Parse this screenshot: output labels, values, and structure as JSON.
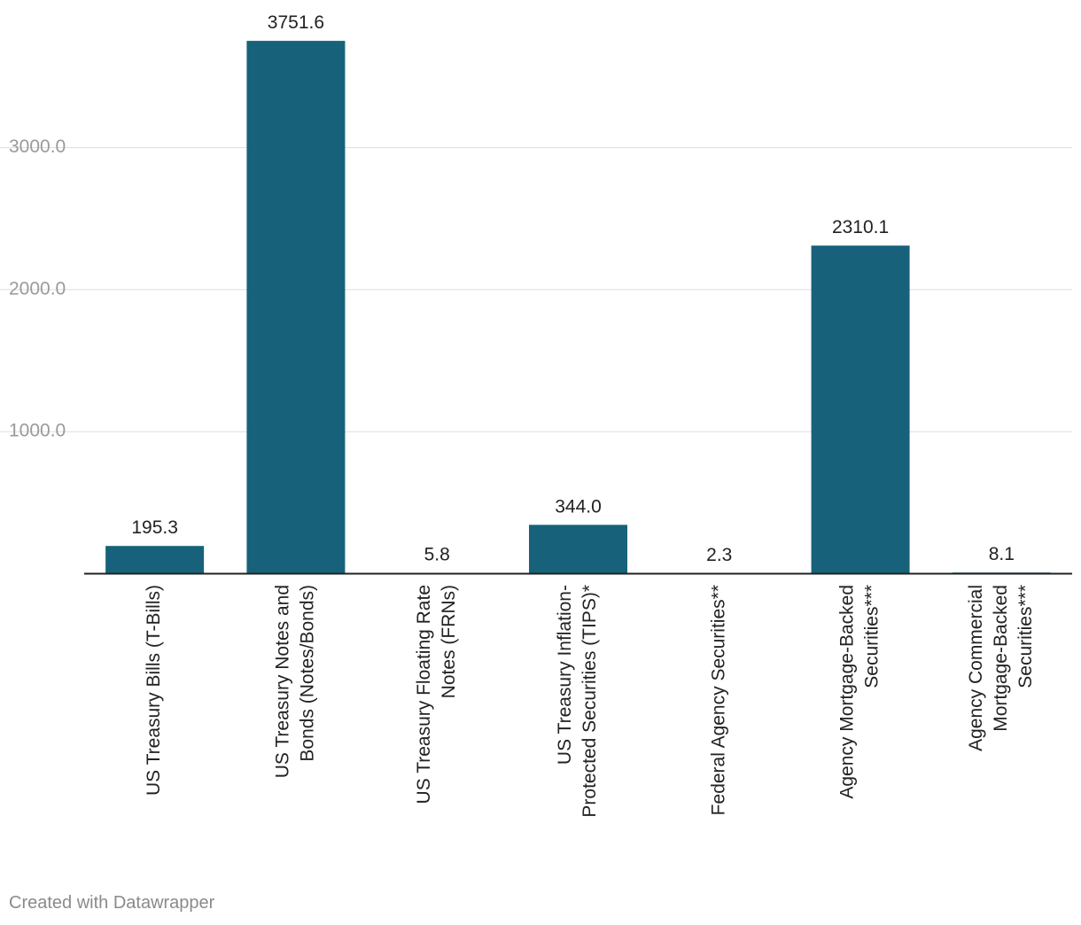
{
  "chart_data": {
    "type": "bar",
    "categories": [
      [
        "US Treasury Bills (T-Bills)"
      ],
      [
        "US Treasury Notes and",
        "Bonds (Notes/Bonds)"
      ],
      [
        "US Treasury Floating Rate",
        "Notes (FRNs)"
      ],
      [
        "US Treasury Inflation-",
        "Protected Securities (TIPS)*"
      ],
      [
        "Federal Agency Securities**"
      ],
      [
        "Agency Mortgage-Backed",
        "Securities***"
      ],
      [
        "Agency Commercial",
        "Mortgage-Backed",
        "Securities***"
      ]
    ],
    "values": [
      195.3,
      3751.6,
      5.8,
      344.0,
      2.3,
      2310.1,
      8.1
    ],
    "value_labels": [
      "195.3",
      "3751.6",
      "5.8",
      "344.0",
      "2.3",
      "2310.1",
      "8.1"
    ],
    "yticks": [
      1000,
      2000,
      3000
    ],
    "ytick_labels": [
      "1000.0",
      "2000.0",
      "3000.0"
    ],
    "ylim": [
      0,
      4000
    ],
    "grid": true,
    "bar_color": "#17627a",
    "title": "",
    "xlabel": "",
    "ylabel": ""
  },
  "footer": {
    "credit": "Created with Datawrapper"
  }
}
